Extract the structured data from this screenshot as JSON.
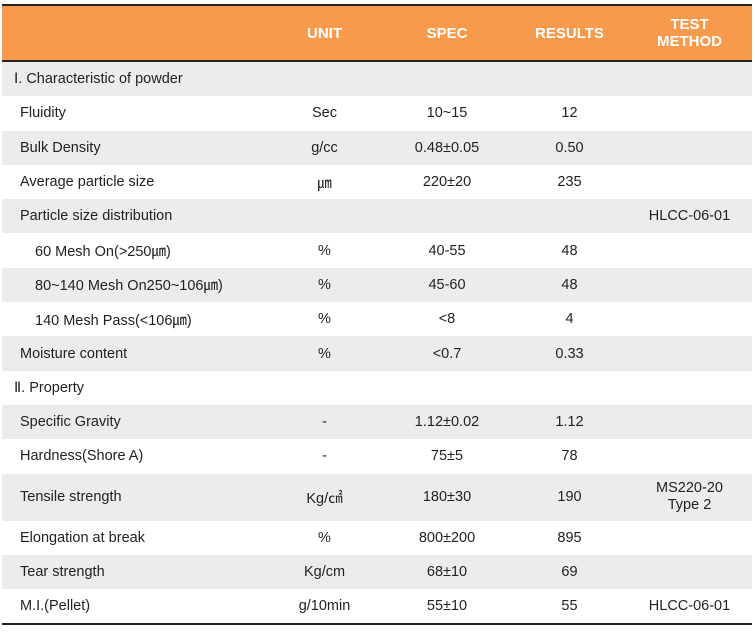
{
  "header": {
    "unit": "UNIT",
    "spec": "SPEC",
    "results": "RESULTS",
    "test_method_line1": "TEST",
    "test_method_line2": "METHOD"
  },
  "rows": [
    {
      "kind": "section",
      "item": "Ⅰ. Characteristic of powder",
      "unit": "",
      "spec": "",
      "result": "",
      "method": ""
    },
    {
      "kind": "item",
      "item": "Fluidity",
      "unit": "Sec",
      "spec": "10~15",
      "result": "12",
      "method": ""
    },
    {
      "kind": "item",
      "item": "Bulk Density",
      "unit": "g/cc",
      "spec": "0.48±0.05",
      "result": "0.50",
      "method": ""
    },
    {
      "kind": "item",
      "item": "Average particle size",
      "unit": "㎛",
      "spec": "220±20",
      "result": "235",
      "method": ""
    },
    {
      "kind": "item",
      "item": "Particle size distribution",
      "unit": "",
      "spec": "",
      "result": "",
      "method": "HLCC-06-01"
    },
    {
      "kind": "indent",
      "item": "60 Mesh On(>250㎛)",
      "unit": "%",
      "spec": "40-55",
      "result": "48",
      "method": ""
    },
    {
      "kind": "indent",
      "item": "80~140 Mesh On250~106㎛)",
      "unit": "%",
      "spec": "45-60",
      "result": "48",
      "method": ""
    },
    {
      "kind": "indent",
      "item": "140 Mesh Pass(<106㎛)",
      "unit": "%",
      "spec": "<8",
      "result": "4",
      "method": ""
    },
    {
      "kind": "item",
      "item": "Moisture content",
      "unit": "%",
      "spec": "<0.7",
      "result": "0.33",
      "method": ""
    },
    {
      "kind": "section",
      "item": "Ⅱ. Property",
      "unit": "",
      "spec": "",
      "result": "",
      "method": ""
    },
    {
      "kind": "item",
      "item": "Specific Gravity",
      "unit": "-",
      "spec": "1.12±0.02",
      "result": "1.12",
      "method": ""
    },
    {
      "kind": "item",
      "item": "Hardness(Shore A)",
      "unit": "-",
      "spec": "75±5",
      "result": "78",
      "method": ""
    },
    {
      "kind": "item",
      "item": "Tensile strength",
      "unit": "Kg/㎠",
      "spec": "180±30",
      "result": "190",
      "method": "MS220-20",
      "method2": "Type 2"
    },
    {
      "kind": "item",
      "item": "Elongation at break",
      "unit": "%",
      "spec": "800±200",
      "result": "895",
      "method": ""
    },
    {
      "kind": "item",
      "item": "Tear strength",
      "unit": "Kg/cm",
      "spec": "68±10",
      "result": "69",
      "method": ""
    },
    {
      "kind": "item",
      "item": "M.I.(Pellet)",
      "unit": "g/10min",
      "spec": "55±10",
      "result": "55",
      "method": "HLCC-06-01"
    }
  ]
}
